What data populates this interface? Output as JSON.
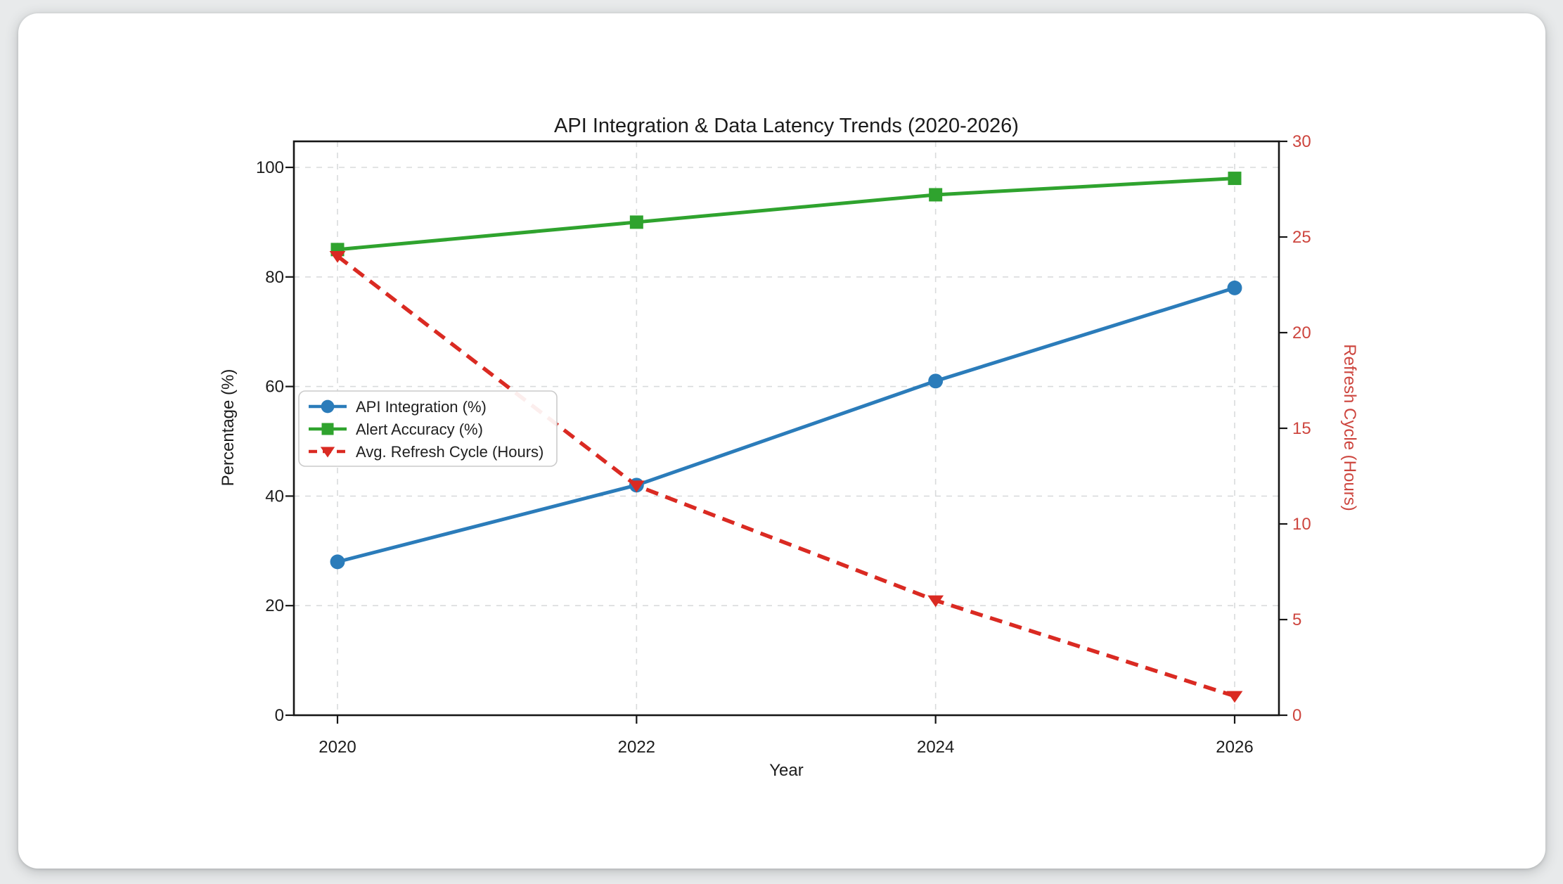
{
  "page": {
    "background_color": "#e8eaeb",
    "card_background_color": "#ffffff"
  },
  "chart_data": {
    "type": "line",
    "title": "API Integration & Data Latency Trends (2020-2026)",
    "xlabel": "Year",
    "x": [
      2020,
      2022,
      2024,
      2026
    ],
    "grid": true,
    "legend_position": "center-left",
    "left_axis": {
      "label": "Percentage (%)",
      "ticks": [
        0,
        20,
        40,
        60,
        80,
        100
      ],
      "range": [
        0,
        104.75
      ],
      "text_color": "#1c1c1c"
    },
    "right_axis": {
      "label": "Refresh Cycle (Hours)",
      "ticks": [
        0,
        5,
        10,
        15,
        20,
        25,
        30
      ],
      "range": [
        0,
        30
      ],
      "text_color": "#cd453e"
    },
    "series": [
      {
        "name": "API Integration (%)",
        "axis": "left",
        "values": [
          28,
          42,
          61,
          78
        ],
        "color": "#2b7cba",
        "marker": "circle",
        "line_style": "solid"
      },
      {
        "name": "Alert Accuracy (%)",
        "axis": "left",
        "values": [
          85,
          90,
          95,
          98
        ],
        "color": "#2fa32e",
        "marker": "square",
        "line_style": "solid"
      },
      {
        "name": "Avg. Refresh Cycle (Hours)",
        "axis": "right",
        "values": [
          24,
          12,
          6,
          1
        ],
        "color": "#da2a22",
        "marker": "triangle-down",
        "line_style": "dashed"
      }
    ]
  }
}
